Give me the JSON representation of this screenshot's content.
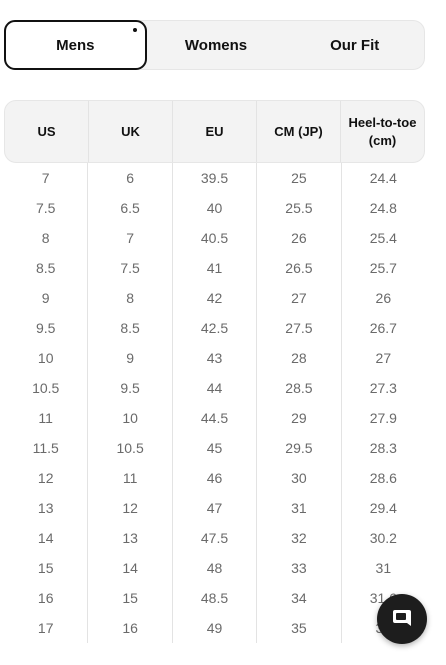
{
  "tabs": [
    "Mens",
    "Womens",
    "Our Fit"
  ],
  "active_tab": "Mens",
  "table": {
    "headers": [
      "US",
      "UK",
      "EU",
      "CM (JP)",
      "Heel-to-toe (cm)"
    ],
    "rows": [
      [
        "7",
        "6",
        "39.5",
        "25",
        "24.4"
      ],
      [
        "7.5",
        "6.5",
        "40",
        "25.5",
        "24.8"
      ],
      [
        "8",
        "7",
        "40.5",
        "26",
        "25.4"
      ],
      [
        "8.5",
        "7.5",
        "41",
        "26.5",
        "25.7"
      ],
      [
        "9",
        "8",
        "42",
        "27",
        "26"
      ],
      [
        "9.5",
        "8.5",
        "42.5",
        "27.5",
        "26.7"
      ],
      [
        "10",
        "9",
        "43",
        "28",
        "27"
      ],
      [
        "10.5",
        "9.5",
        "44",
        "28.5",
        "27.3"
      ],
      [
        "11",
        "10",
        "44.5",
        "29",
        "27.9"
      ],
      [
        "11.5",
        "10.5",
        "45",
        "29.5",
        "28.3"
      ],
      [
        "12",
        "11",
        "46",
        "30",
        "28.6"
      ],
      [
        "13",
        "12",
        "47",
        "31",
        "29.4"
      ],
      [
        "14",
        "13",
        "47.5",
        "32",
        "30.2"
      ],
      [
        "15",
        "14",
        "48",
        "33",
        "31"
      ],
      [
        "16",
        "15",
        "48.5",
        "34",
        "31.6"
      ],
      [
        "17",
        "16",
        "49",
        "35",
        "32"
      ]
    ]
  },
  "chat_button": {
    "icon": "chat-bubble-icon"
  }
}
